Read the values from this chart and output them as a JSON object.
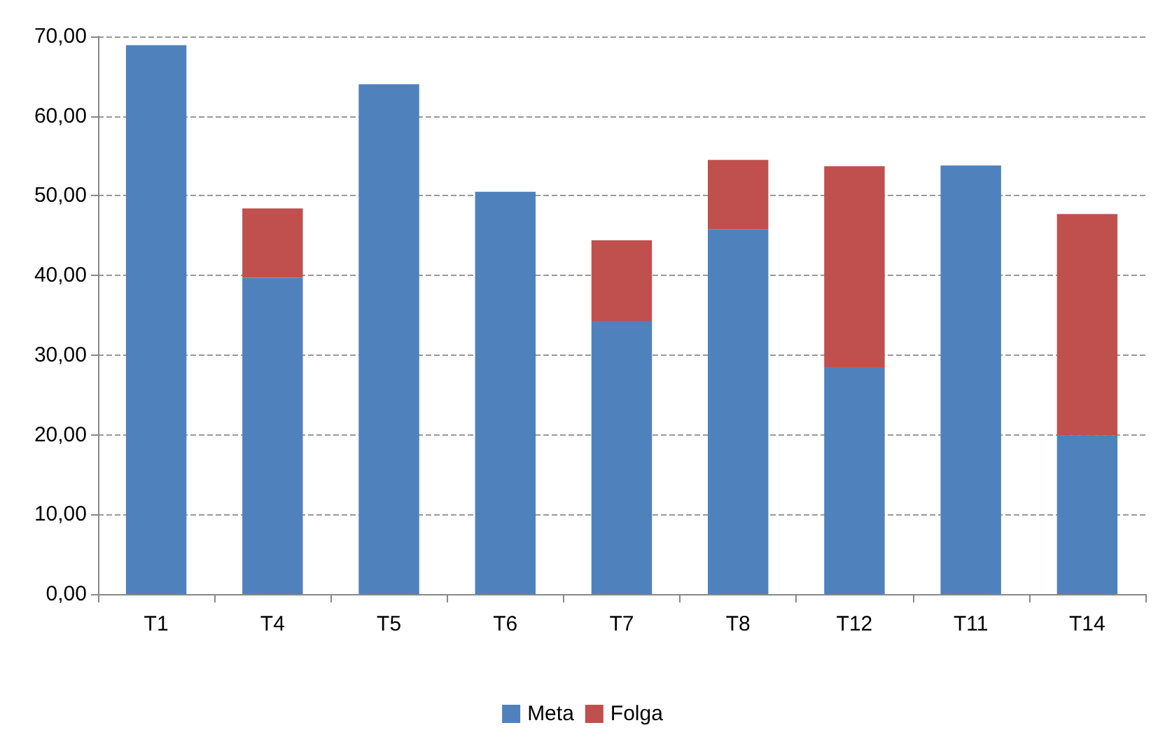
{
  "chart_data": {
    "type": "bar",
    "stacked": true,
    "categories": [
      "T1",
      "T4",
      "T5",
      "T6",
      "T7",
      "T8",
      "T12",
      "T11",
      "T14"
    ],
    "series": [
      {
        "name": "Meta",
        "color": "#4f81bd",
        "values": [
          68.9,
          39.7,
          64.0,
          50.5,
          34.3,
          45.8,
          28.5,
          53.8,
          19.9
        ]
      },
      {
        "name": "Folga",
        "color": "#c0504d",
        "values": [
          null,
          8.7,
          null,
          null,
          10.1,
          8.7,
          25.2,
          null,
          27.8
        ]
      }
    ],
    "ylim": [
      0,
      70
    ],
    "yticks": [
      {
        "value": 0,
        "label": "0,00"
      },
      {
        "value": 10,
        "label": "10,00"
      },
      {
        "value": 20,
        "label": "20,00"
      },
      {
        "value": 30,
        "label": "30,00"
      },
      {
        "value": 40,
        "label": "40,00"
      },
      {
        "value": 50,
        "label": "50,00"
      },
      {
        "value": 60,
        "label": "60,00"
      },
      {
        "value": 70,
        "label": "70,00"
      }
    ],
    "grid": "y",
    "legend": "bottom"
  }
}
